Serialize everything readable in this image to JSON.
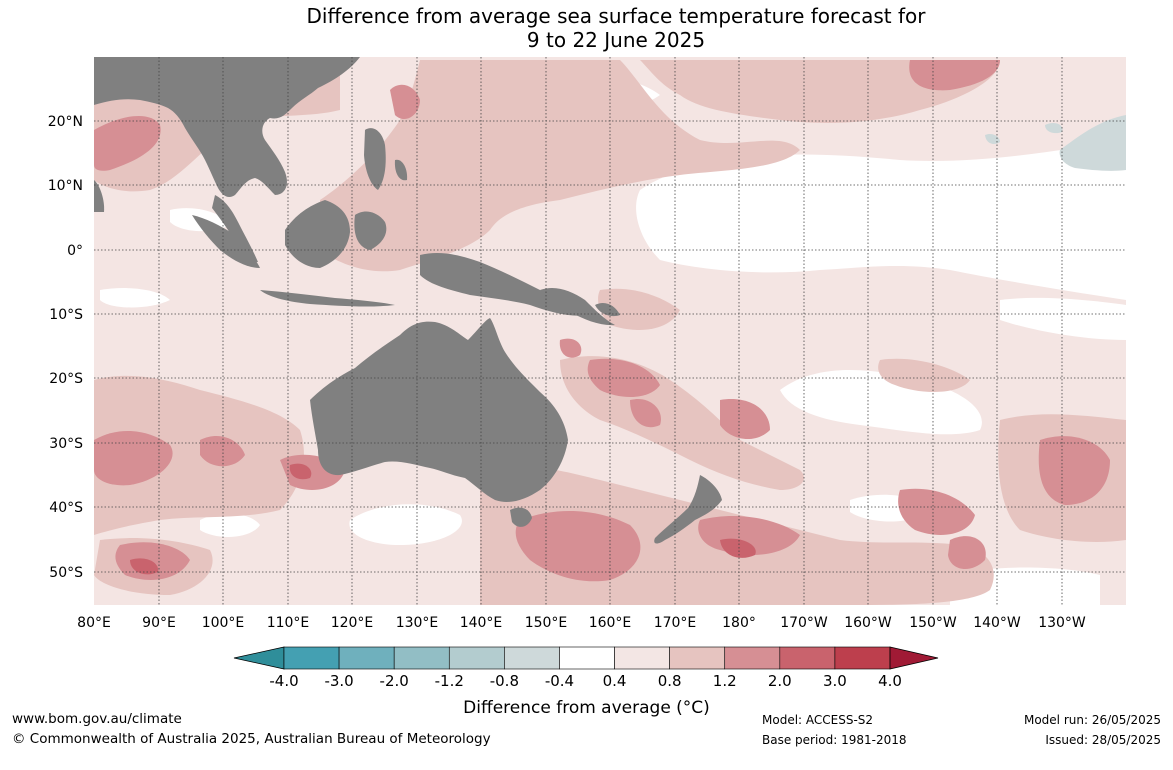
{
  "title": {
    "line1": "Difference from average sea surface temperature forecast for",
    "line2": "9 to 22 June 2025"
  },
  "map": {
    "lat_ticks": [
      "20°N",
      "10°N",
      "0°",
      "10°S",
      "20°S",
      "30°S",
      "40°S",
      "50°S"
    ],
    "lon_ticks": [
      "80°E",
      "90°E",
      "100°E",
      "110°E",
      "120°E",
      "130°E",
      "140°E",
      "150°E",
      "160°E",
      "170°E",
      "180°",
      "170°W",
      "160°W",
      "150°W",
      "140°W",
      "130°W"
    ],
    "land_color": "#808080",
    "grid": "dotted"
  },
  "colorbar": {
    "ticks": [
      "-4.0",
      "-3.0",
      "-2.0",
      "-1.2",
      "-0.8",
      "-0.4",
      "0.4",
      "0.8",
      "1.2",
      "2.0",
      "3.0",
      "4.0"
    ],
    "colors": [
      "#2f8e9a",
      "#44a0b2",
      "#6fb0bd",
      "#92bec5",
      "#b3cccf",
      "#ced9da",
      "#ffffff",
      "#f3e6e4",
      "#e6c4c0",
      "#d68f94",
      "#c9636d",
      "#bd3f4d",
      "#a01a35"
    ],
    "label": "Difference from average (°C)"
  },
  "footer": {
    "website": "www.bom.gov.au/climate",
    "copyright": "© Commonwealth of Australia 2025, Australian Bureau of Meteorology",
    "model": "Model: ACCESS-S2",
    "base_period": "Base period: 1981-2018",
    "model_run": "Model run: 26/05/2025",
    "issued": "Issued: 28/05/2025"
  }
}
